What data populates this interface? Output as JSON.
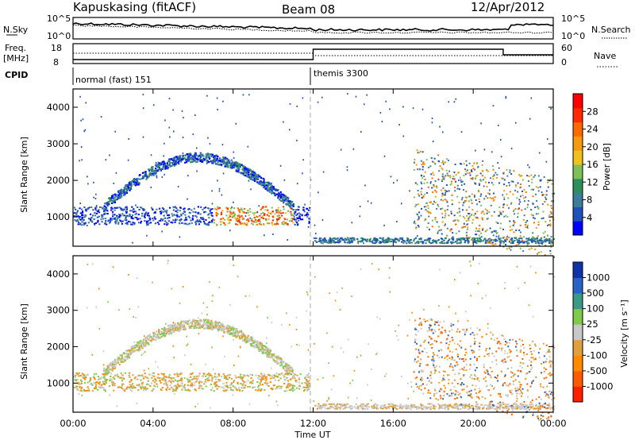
{
  "header": {
    "radar": "Kapuskasing (fitACF)",
    "beam": "Beam 08",
    "date": "12/Apr/2012"
  },
  "panels": {
    "nsky": {
      "left_label": "N.Sky",
      "right_label": "N.Search",
      "left_ticks": [
        "10^5",
        "10^0"
      ],
      "right_ticks": [
        "10^5",
        "10^0"
      ]
    },
    "freq": {
      "left_label_1": "Freq.",
      "left_label_2": "[MHz]",
      "left_ticks": [
        "18",
        "8"
      ],
      "right_ticks": [
        "60",
        "0"
      ],
      "right_label": "Nave"
    },
    "cpid": {
      "label": "CPID",
      "mode1": "normal (fast) 151",
      "mode2": "themis 3300"
    }
  },
  "colors": {
    "power_scale": [
      "#0000ff",
      "#1f4fb8",
      "#3e7d9a",
      "#2f8f5a",
      "#7fbf5a",
      "#f0c020",
      "#f29a10",
      "#ff6a00",
      "#ff2a00",
      "#ff0000"
    ],
    "velocity_scale": [
      "#1133aa",
      "#2a63c8",
      "#3a9a86",
      "#7fc94b",
      "#c8c8c8",
      "#e0a040",
      "#ff8a00",
      "#ff5a00",
      "#ff2000"
    ]
  },
  "chart_data": [
    {
      "type": "heatmap",
      "name": "power",
      "ylabel": "Slant Range [km]",
      "y_ticks": [
        "1000",
        "2000",
        "3000",
        "4000"
      ],
      "ylim": [
        200,
        4500
      ],
      "xlim": [
        0,
        24
      ],
      "colorbar_label": "Power [dB]",
      "colorbar_ticks": [
        "4",
        "8",
        "12",
        "16",
        "20",
        "24",
        "28"
      ],
      "grid": false
    },
    {
      "type": "heatmap",
      "name": "velocity",
      "ylabel": "Slant Range [km]",
      "y_ticks": [
        "1000",
        "2000",
        "3000",
        "4000"
      ],
      "ylim": [
        200,
        4500
      ],
      "xlim": [
        0,
        24
      ],
      "colorbar_label": "Velocity [m s⁻¹]",
      "colorbar_ticks": [
        "1000",
        "500",
        "100",
        "25",
        "-25",
        "-100",
        "-500",
        "-1000"
      ],
      "grid": false
    }
  ],
  "x_axis": {
    "label": "Time UT",
    "ticks": [
      "00:00",
      "04:00",
      "08:00",
      "12:00",
      "16:00",
      "20:00",
      "00:00"
    ]
  }
}
